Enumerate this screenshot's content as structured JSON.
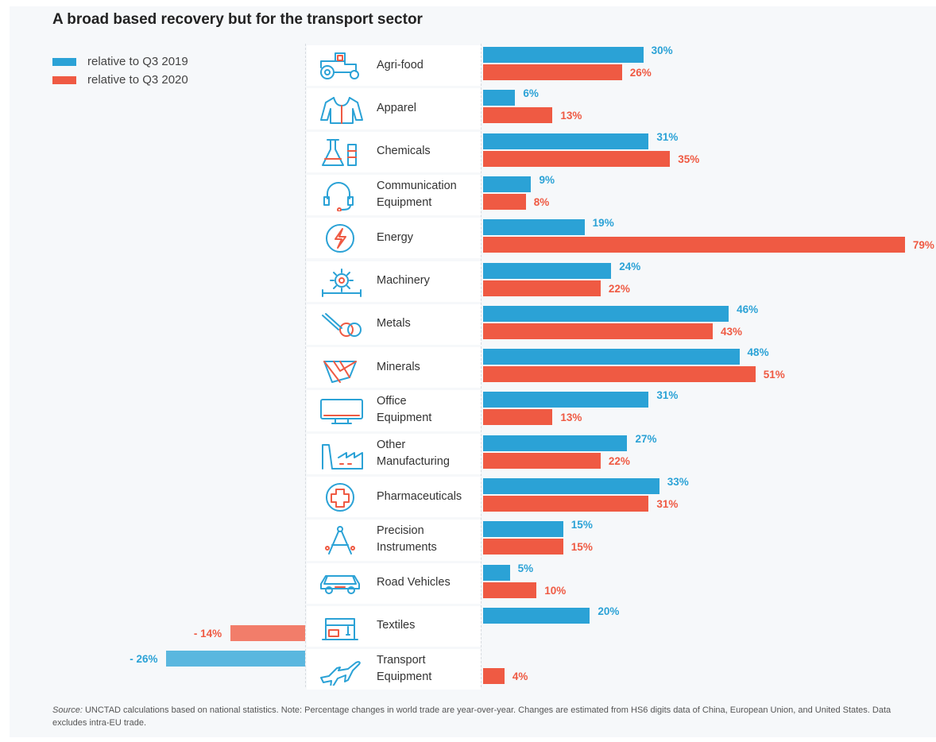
{
  "title": "A broad based recovery but for the transport sector",
  "colors": {
    "blue": "#2ba2d6",
    "red": "#ef5a43",
    "blue_neg": "#5ab7df",
    "red_neg": "#f27d6a"
  },
  "legend": {
    "items": [
      {
        "label": "relative to Q3 2019",
        "color": "#2ba2d6"
      },
      {
        "label": "relative to Q3 2020",
        "color": "#ef5a43"
      }
    ]
  },
  "chart_data": {
    "type": "bar",
    "orientation": "horizontal",
    "title": "A broad based recovery but for the transport sector",
    "categories": [
      {
        "lines": [
          "Agri-food"
        ],
        "icon": "tractor-icon"
      },
      {
        "lines": [
          "Apparel"
        ],
        "icon": "jacket-icon"
      },
      {
        "lines": [
          "Chemicals"
        ],
        "icon": "flask-icon"
      },
      {
        "lines": [
          "Communication",
          "Equipment"
        ],
        "icon": "headset-icon"
      },
      {
        "lines": [
          "Energy"
        ],
        "icon": "lightning-icon"
      },
      {
        "lines": [
          "Machinery"
        ],
        "icon": "gear-icon"
      },
      {
        "lines": [
          "Metals"
        ],
        "icon": "metal-coil-icon"
      },
      {
        "lines": [
          "Minerals"
        ],
        "icon": "diamond-icon"
      },
      {
        "lines": [
          "Office",
          "Equipment"
        ],
        "icon": "monitor-icon"
      },
      {
        "lines": [
          "Other",
          "Manufacturing"
        ],
        "icon": "factory-icon"
      },
      {
        "lines": [
          "Pharmaceuticals"
        ],
        "icon": "medical-cross-icon"
      },
      {
        "lines": [
          "Precision",
          "Instruments"
        ],
        "icon": "compass-icon"
      },
      {
        "lines": [
          "Road Vehicles"
        ],
        "icon": "car-icon"
      },
      {
        "lines": [
          "Textiles"
        ],
        "icon": "sewing-machine-icon"
      },
      {
        "lines": [
          "Transport",
          "Equipment"
        ],
        "icon": "airplane-icon"
      }
    ],
    "series": [
      {
        "name": "relative to Q3 2019",
        "values": [
          30,
          6,
          31,
          9,
          19,
          24,
          46,
          48,
          31,
          27,
          33,
          15,
          5,
          20,
          -26
        ],
        "labels": [
          "30%",
          "6%",
          "31%",
          "9%",
          "19%",
          "24%",
          "46%",
          "48%",
          "31%",
          "27%",
          "33%",
          "15%",
          "5%",
          "20%",
          "- 26%"
        ]
      },
      {
        "name": "relative to Q3 2020",
        "values": [
          26,
          13,
          35,
          8,
          79,
          22,
          43,
          51,
          13,
          22,
          31,
          15,
          10,
          -14,
          4
        ],
        "labels": [
          "26%",
          "13%",
          "35%",
          "8%",
          "79%",
          "22%",
          "43%",
          "51%",
          "13%",
          "22%",
          "31%",
          "15%",
          "10%",
          "- 14%",
          "4%"
        ]
      }
    ],
    "xlim": [
      -30,
      80
    ],
    "grid": false,
    "legend_position": "top-left"
  },
  "source": {
    "prefix": "Source:",
    "text": " UNCTAD calculations based on national statistics. Note: Percentage changes in world trade are year-over-year. Changes are estimated from HS6 digits data of China, European Union, and United States. Data excludes intra-EU trade."
  }
}
